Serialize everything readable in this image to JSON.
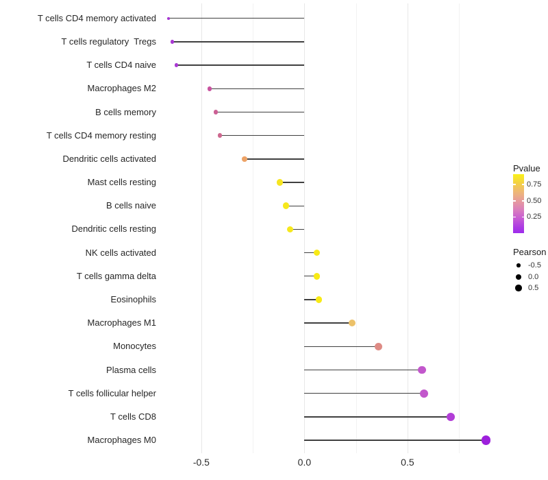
{
  "chart_data": {
    "type": "lollipop",
    "orientation": "horizontal",
    "description": "Lollipop chart of Pearson correlation per immune cell type; dot color encodes Pvalue, dot size encodes Pearson",
    "x_axis": {
      "tick_labels": [
        "-0.5",
        "0.0",
        "0.5"
      ],
      "tick_values": [
        -0.5,
        0.0,
        0.5
      ],
      "minor_gridline_values": [
        -0.25,
        0.25,
        0.75
      ],
      "range": [
        -0.74,
        0.95
      ],
      "grid": true
    },
    "points": [
      {
        "label": "T cells CD4 memory activated",
        "pearson": -0.66,
        "pvalue_est": 0.1,
        "color": "#a636d1",
        "r": 1.9
      },
      {
        "label": "T cells regulatory  Tregs",
        "pearson": -0.64,
        "pvalue_est": 0.11,
        "color": "#a938d3",
        "r": 2.6
      },
      {
        "label": "T cells CD4 naive",
        "pearson": -0.62,
        "pvalue_est": 0.12,
        "color": "#a938d3",
        "r": 2.7
      },
      {
        "label": "Macrophages M2",
        "pearson": -0.46,
        "pvalue_est": 0.38,
        "color": "#c8539f",
        "r": 3.2
      },
      {
        "label": "B cells memory",
        "pearson": -0.43,
        "pvalue_est": 0.41,
        "color": "#cb5f94",
        "r": 3.3
      },
      {
        "label": "T cells CD4 memory resting",
        "pearson": -0.41,
        "pvalue_est": 0.43,
        "color": "#cd688f",
        "r": 3.4
      },
      {
        "label": "Dendritic cells activated",
        "pearson": -0.29,
        "pvalue_est": 0.63,
        "color": "#eda367",
        "r": 3.7
      },
      {
        "label": "Mast cells resting",
        "pearson": -0.12,
        "pvalue_est": 0.87,
        "color": "#f6e521",
        "r": 4.7
      },
      {
        "label": "B cells naive",
        "pearson": -0.09,
        "pvalue_est": 0.88,
        "color": "#f6e81d",
        "r": 4.8
      },
      {
        "label": "Dendritic cells resting",
        "pearson": -0.07,
        "pvalue_est": 0.88,
        "color": "#f6e81d",
        "r": 4.8
      },
      {
        "label": "NK cells activated",
        "pearson": 0.06,
        "pvalue_est": 0.9,
        "color": "#f8ea16",
        "r": 4.9
      },
      {
        "label": "T cells gamma delta",
        "pearson": 0.06,
        "pvalue_est": 0.9,
        "color": "#f8ea16",
        "r": 4.9
      },
      {
        "label": "Eosinophils",
        "pearson": 0.07,
        "pvalue_est": 0.9,
        "color": "#f8ea16",
        "r": 4.9
      },
      {
        "label": "Macrophages M1",
        "pearson": 0.23,
        "pvalue_est": 0.7,
        "color": "#ecc169",
        "r": 5.1
      },
      {
        "label": "Monocytes",
        "pearson": 0.36,
        "pvalue_est": 0.5,
        "color": "#de8b85",
        "r": 5.4
      },
      {
        "label": "Plasma cells",
        "pearson": 0.57,
        "pvalue_est": 0.24,
        "color": "#c257cc",
        "r": 5.9
      },
      {
        "label": "T cells follicular helper",
        "pearson": 0.58,
        "pvalue_est": 0.24,
        "color": "#c257cc",
        "r": 6.0
      },
      {
        "label": "T cells CD8",
        "pearson": 0.71,
        "pvalue_est": 0.15,
        "color": "#b23ed7",
        "r": 6.3
      },
      {
        "label": "Macrophages M0",
        "pearson": 0.88,
        "pvalue_est": 0.03,
        "color": "#9d20dc",
        "r": 6.7
      }
    ],
    "legend_position": "right"
  },
  "legends": {
    "pvalue": {
      "title": "Pvalue",
      "tick_labels": [
        "0.75",
        "0.50",
        "0.25"
      ],
      "tick_values": [
        0.75,
        0.5,
        0.25
      ],
      "scale_range": [
        0.0,
        0.91
      ],
      "gradient_top_to_bottom": [
        "#faf118",
        "#eeb876",
        "#e79c9c",
        "#c75dd3",
        "#9d2bec"
      ]
    },
    "pearson": {
      "title": "Pearson",
      "items": [
        {
          "label": "-0.5",
          "r": 2.7
        },
        {
          "label": "0.0",
          "r": 4.0
        },
        {
          "label": "0.5",
          "r": 4.8
        }
      ],
      "dot_color": "#000000"
    }
  }
}
